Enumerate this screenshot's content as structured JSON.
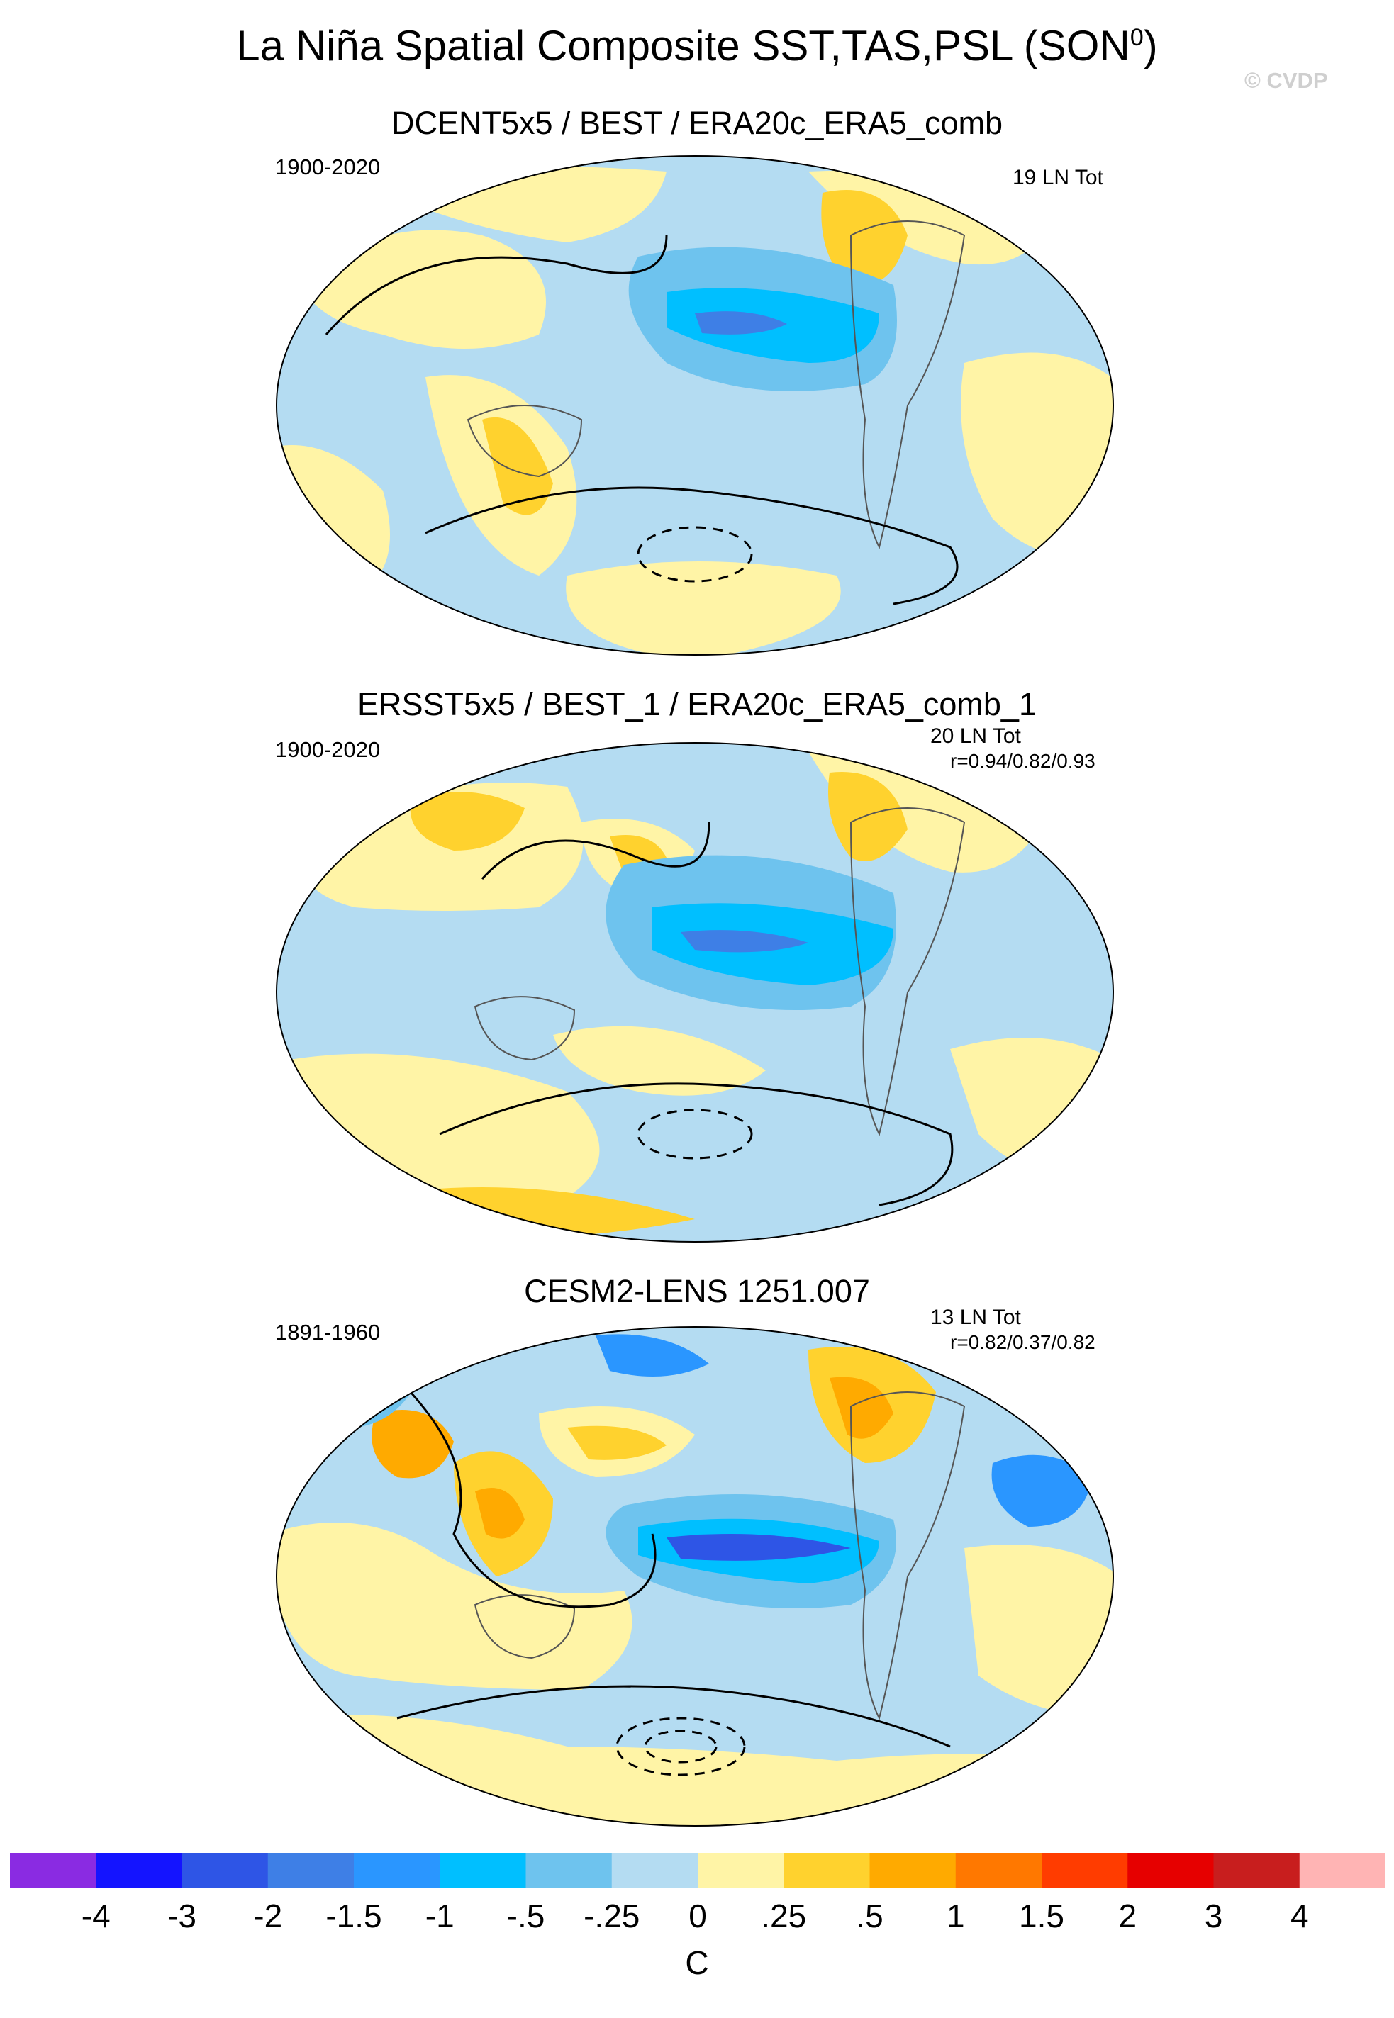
{
  "title": {
    "text": "La Niña Spatial Composite SST,TAS,PSL (SON",
    "sup": "0",
    "close": ")"
  },
  "watermark": "© CVDP",
  "panels": [
    {
      "title": "DCENT5x5 / BEST / ERA20c_ERA5_comb",
      "period": "1900-2020",
      "count": "19 LN Tot",
      "corr": ""
    },
    {
      "title": "ERSST5x5 / BEST_1 / ERA20c_ERA5_comb_1",
      "period": "1900-2020",
      "count": "20 LN Tot",
      "corr": "r=0.94/0.82/0.93"
    },
    {
      "title": "CESM2-LENS 1251.007",
      "period": "1891-1960",
      "count": "13 LN Tot",
      "corr": "r=0.82/0.37/0.82"
    }
  ],
  "colorbar": {
    "units": "C",
    "labels": [
      "-4",
      "-3",
      "-2",
      "-1.5",
      "-1",
      "-.5",
      "-.25",
      "0",
      ".25",
      ".5",
      "1",
      "1.5",
      "2",
      "3",
      "4"
    ],
    "colors": [
      "#8a2be2",
      "#1414ff",
      "#2e55e6",
      "#3e7fe6",
      "#2a96ff",
      "#00bfff",
      "#6ec3ee",
      "#b4dcf2",
      "#fff4a6",
      "#ffd22e",
      "#ffaa00",
      "#ff7800",
      "#ff3c00",
      "#e60000",
      "#c81e1e",
      "#ffb4b4"
    ]
  },
  "palette": {
    "ocean_cool": "#b4dcf2",
    "mid_blue": "#6ec3ee",
    "cyan": "#00bfff",
    "deep_blue": "#2e55e6",
    "pale_yellow": "#fff4a6",
    "gold": "#ffd22e",
    "orange": "#ffaa00"
  }
}
